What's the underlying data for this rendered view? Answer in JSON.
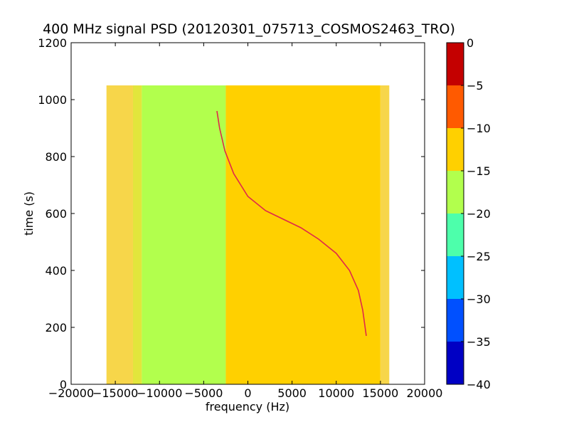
{
  "chart_data": {
    "type": "heatmap",
    "title": "400 MHz signal PSD (20120301_075713_COSMOS2463_TRO)",
    "xlabel": "frequency (Hz)",
    "ylabel": "time (s)",
    "xlim": [
      -20000,
      20000
    ],
    "ylim": [
      0,
      1200
    ],
    "xticks": [
      -20000,
      -15000,
      -10000,
      -5000,
      0,
      5000,
      10000,
      15000,
      20000
    ],
    "yticks": [
      0,
      200,
      400,
      600,
      800,
      1000,
      1200
    ],
    "xtick_labels": [
      "−20000",
      "−15000",
      "−10000",
      "−5000",
      "0",
      "5000",
      "10000",
      "15000",
      "20000"
    ],
    "ytick_labels": [
      "0",
      "200",
      "400",
      "600",
      "800",
      "1000",
      "1200"
    ],
    "data_extent": {
      "x": [
        -16000,
        16000
      ],
      "y": [
        0,
        1050
      ]
    },
    "regions": [
      {
        "x": [
          -16000,
          -13000
        ],
        "y": [
          0,
          1050
        ],
        "level": -12.5,
        "color": "#f7d64a"
      },
      {
        "x": [
          -13000,
          -12000
        ],
        "y": [
          0,
          1050
        ],
        "level": -15,
        "color": "#e2e63c"
      },
      {
        "x": [
          -12000,
          -2500
        ],
        "y": [
          0,
          1050
        ],
        "level": -17.5,
        "color": "#b2ff4d"
      },
      {
        "x": [
          -2500,
          15000
        ],
        "y": [
          0,
          1050
        ],
        "level": -12.5,
        "color": "#ffd000"
      },
      {
        "x": [
          15000,
          16000
        ],
        "y": [
          0,
          1050
        ],
        "level": -12.5,
        "color": "#f7d64a"
      }
    ],
    "signal_trace": {
      "color": "#e0284a",
      "points": [
        [
          -3500,
          960
        ],
        [
          -3200,
          900
        ],
        [
          -2600,
          820
        ],
        [
          -1600,
          740
        ],
        [
          0,
          660
        ],
        [
          2000,
          610
        ],
        [
          4000,
          580
        ],
        [
          6000,
          550
        ],
        [
          8000,
          510
        ],
        [
          10000,
          460
        ],
        [
          11500,
          400
        ],
        [
          12500,
          330
        ],
        [
          13000,
          260
        ],
        [
          13400,
          170
        ]
      ]
    },
    "colorbar": {
      "range": [
        -40,
        0
      ],
      "ticks": [
        0,
        -5,
        -10,
        -15,
        -20,
        -25,
        -30,
        -35,
        -40
      ],
      "tick_labels": [
        "0",
        "−5",
        "−10",
        "−15",
        "−20",
        "−25",
        "−30",
        "−35",
        "−40"
      ],
      "bins": [
        {
          "from": -40,
          "to": -35,
          "color": "#0000c4"
        },
        {
          "from": -35,
          "to": -30,
          "color": "#0050ff"
        },
        {
          "from": -30,
          "to": -25,
          "color": "#00c0ff"
        },
        {
          "from": -25,
          "to": -20,
          "color": "#4dffab"
        },
        {
          "from": -20,
          "to": -15,
          "color": "#b2ff4d"
        },
        {
          "from": -15,
          "to": -10,
          "color": "#ffd000"
        },
        {
          "from": -10,
          "to": -5,
          "color": "#ff5a00"
        },
        {
          "from": -5,
          "to": 0,
          "color": "#c40000"
        }
      ]
    }
  }
}
